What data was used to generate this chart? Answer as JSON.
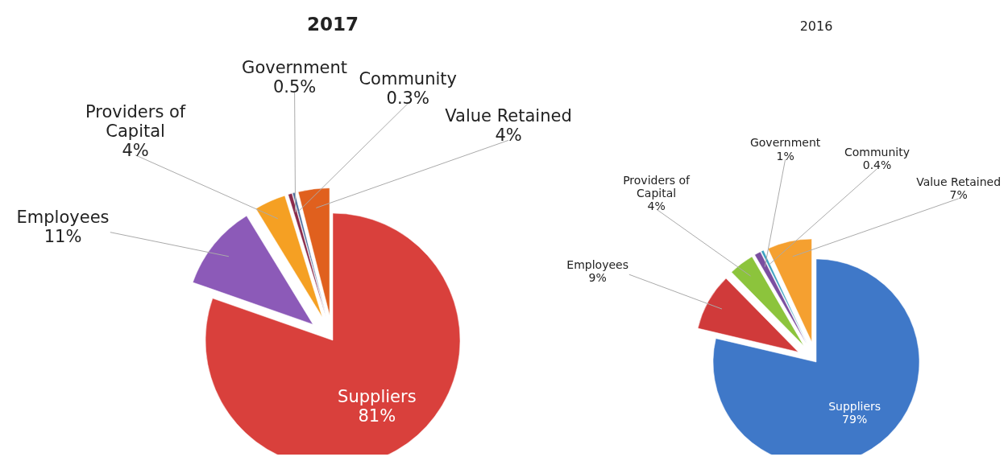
{
  "chart_data": [
    {
      "type": "pie",
      "title": "2017",
      "categories": [
        "Suppliers",
        "Employees",
        "Providers of Capital",
        "Government",
        "Community",
        "Value Retained"
      ],
      "values": [
        81,
        11,
        4,
        0.5,
        0.3,
        4
      ],
      "value_labels": [
        "81%",
        "11%",
        "4%",
        "0.5%",
        "0.3%",
        "4%"
      ],
      "colors": [
        "#d9403c",
        "#8c5ab8",
        "#f5a023",
        "#8a2a4a",
        "#4a6a9a",
        "#e0601e"
      ]
    },
    {
      "type": "pie",
      "title": "2016",
      "categories": [
        "Suppliers",
        "Employees",
        "Providers of Capital",
        "Government",
        "Community",
        "Value Retained"
      ],
      "values": [
        79,
        9,
        4,
        1,
        0.4,
        7
      ],
      "value_labels": [
        "79%",
        "9%",
        "4%",
        "1%",
        "0.4%",
        "7%"
      ],
      "colors": [
        "#3f78c8",
        "#d03a3a",
        "#8cc43c",
        "#7a4fa0",
        "#3aa0c0",
        "#f5a030"
      ]
    }
  ]
}
